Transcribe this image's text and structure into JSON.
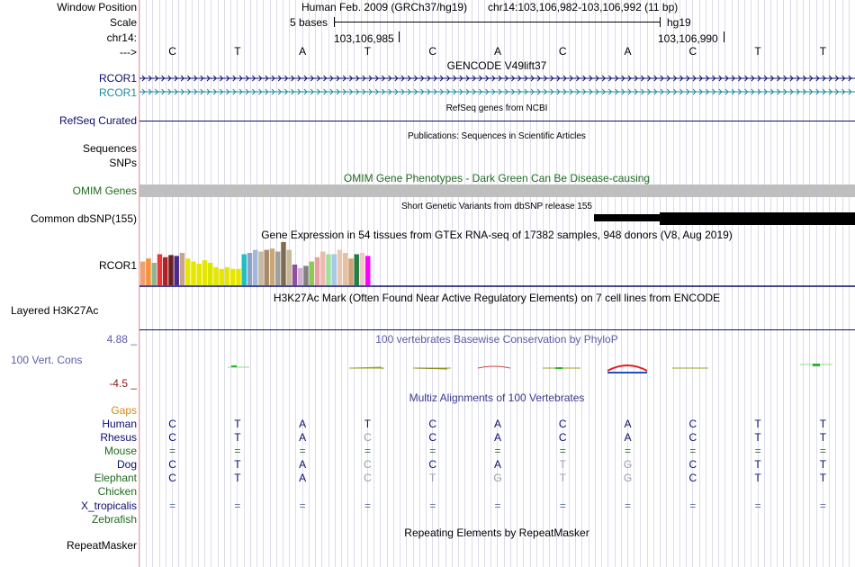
{
  "labels": {
    "window_position": "Window Position",
    "scale": "Scale",
    "chrom": "chr14:",
    "strand_arrow": "--->",
    "gencode_rcor1_a": "RCOR1",
    "gencode_rcor1_b": "RCOR1",
    "refseq": "RefSeq Curated",
    "sequences": "Sequences",
    "snps": "SNPs",
    "omim": "OMIM Genes",
    "dbsnp": "Common dbSNP(155)",
    "gtex": "RCOR1",
    "h3k27ac": "Layered H3K27Ac",
    "cons_max": "4.88 _",
    "cons": "100 Vert. Cons",
    "cons_min": "-4.5 _",
    "gaps": "Gaps",
    "human": "Human",
    "rhesus": "Rhesus",
    "mouse": "Mouse",
    "dog": "Dog",
    "elephant": "Elephant",
    "chicken": "Chicken",
    "x_tropicalis": "X_tropicalis",
    "zebrafish": "Zebrafish",
    "repeatmasker": "RepeatMasker"
  },
  "header": {
    "assembly": "Human Feb. 2009 (GRCh37/hg19)",
    "position": "chr14:103,106,982-103,106,992 (11 bp)",
    "scale_text": "5 bases",
    "scale_db": "hg19",
    "coord1": "103,106,985",
    "coord2": "103,106,990"
  },
  "bases": [
    "C",
    "T",
    "A",
    "T",
    "C",
    "A",
    "C",
    "A",
    "C",
    "T",
    "T"
  ],
  "tracks": {
    "gencode_title": "GENCODE V49lift37",
    "refseq_title": "RefSeq genes from NCBI",
    "pubs_title": "Publications: Sequences in Scientific Articles",
    "omim_title": "OMIM Gene Phenotypes - Dark Green Can Be Disease-causing",
    "dbsnp_title": "Short Genetic Variants from dbSNP release 155",
    "gtex_title": "Gene Expression in 54 tissues from GTEx RNA-seq of 17382 samples, 948 donors (V8, Aug 2019)",
    "h3k27ac_title": "H3K27Ac Mark (Often Found Near Active Regulatory Elements) on 7 cell lines from ENCODE",
    "cons_title": "100 vertebrates Basewise Conservation by PhyloP",
    "multiz_title": "Multiz Alignments of 100 Vertebrates",
    "repeat_title": "Repeating Elements by RepeatMasker"
  },
  "alignments": {
    "human": [
      "C",
      "T",
      "A",
      "T",
      "C",
      "A",
      "C",
      "A",
      "C",
      "T",
      "T"
    ],
    "rhesus": [
      "C",
      "T",
      "A",
      "C",
      "C",
      "A",
      "C",
      "A",
      "C",
      "T",
      "T"
    ],
    "mouse": [
      "=",
      "=",
      "=",
      "=",
      "=",
      "=",
      "=",
      "=",
      "=",
      "=",
      "="
    ],
    "dog": [
      "C",
      "T",
      "A",
      "C",
      "C",
      "A",
      "T",
      "G",
      "C",
      "T",
      "T"
    ],
    "elephant": [
      "C",
      "T",
      "A",
      "C",
      "T",
      "G",
      "T",
      "G",
      "C",
      "T",
      "T"
    ],
    "x_tropicalis": [
      "=",
      "=",
      "=",
      "=",
      "=",
      "=",
      "=",
      "=",
      "=",
      "=",
      "="
    ]
  },
  "alignment_mismatch": {
    "rhesus": [
      false,
      false,
      false,
      true,
      false,
      false,
      false,
      false,
      false,
      false,
      false
    ],
    "dog": [
      false,
      false,
      false,
      true,
      false,
      false,
      true,
      true,
      false,
      false,
      false
    ],
    "elephant": [
      false,
      false,
      false,
      true,
      true,
      true,
      true,
      true,
      false,
      false,
      false
    ]
  },
  "gtex_colors": [
    "#f2a06a",
    "#f5923a",
    "#8fb58f",
    "#e8383b",
    "#b22222",
    "#6b1f1f",
    "#4a2a8a",
    "#c8a58a",
    "#e6e600",
    "#e6e600",
    "#e6e600",
    "#e6e600",
    "#d9e600",
    "#e6e600",
    "#e6e600",
    "#e6e600",
    "#e6e600",
    "#e6e600",
    "#20c0c0",
    "#8fa0c8",
    "#a0b8e0",
    "#c8b8a0",
    "#a88a6a",
    "#c8a878",
    "#a0a0a0",
    "#806a50",
    "#c8b89a",
    "#9050a0",
    "#d0b0d0",
    "#808080",
    "#90c850",
    "#e8a0a0",
    "#f0b8b0",
    "#a0e0a0",
    "#a8c8e8",
    "#e8c8b0",
    "#e8c0a0",
    "#d0a078",
    "#208040",
    "#f0c8c8",
    "#ff00ff"
  ],
  "gtex_values": [
    0.55,
    0.62,
    0.52,
    0.72,
    0.65,
    0.7,
    0.68,
    0.75,
    0.62,
    0.55,
    0.5,
    0.58,
    0.52,
    0.42,
    0.38,
    0.42,
    0.38,
    0.38,
    0.72,
    0.75,
    0.82,
    0.78,
    0.82,
    0.85,
    0.78,
    1.0,
    0.82,
    0.48,
    0.4,
    0.45,
    0.55,
    0.65,
    0.78,
    0.72,
    0.72,
    0.82,
    0.75,
    0.62,
    0.72,
    0.75,
    0.68
  ]
}
